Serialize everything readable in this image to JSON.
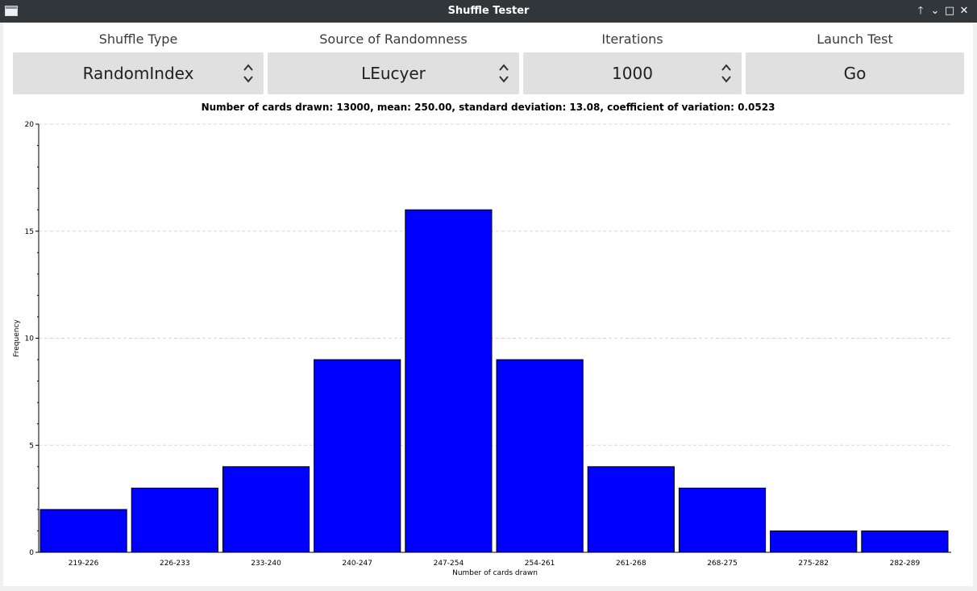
{
  "window": {
    "title": "Shuffle Tester",
    "buttons": {
      "keep_above": "🡑",
      "minimize": "⌄",
      "maximize": "□",
      "close": "✕"
    }
  },
  "controls": {
    "shuffle_type": {
      "label": "Shuffle Type",
      "value": "RandomIndex"
    },
    "source": {
      "label": "Source of Randomness",
      "value": "LEucyer"
    },
    "iterations": {
      "label": "Iterations",
      "value": "1000"
    },
    "launch": {
      "label": "Launch Test",
      "button": "Go"
    }
  },
  "stats_text": "Number of cards drawn: 13000, mean: 250.00, standard deviation: 13.08, coefficient of variation: 0.0523",
  "colors": {
    "bar": "#0000ff",
    "titlebar": "#31363b",
    "control_bg": "#e0e0e0"
  },
  "chart_data": {
    "type": "bar",
    "categories": [
      "219-226",
      "226-233",
      "233-240",
      "240-247",
      "247-254",
      "254-261",
      "261-268",
      "268-275",
      "275-282",
      "282-289"
    ],
    "values": [
      2,
      3,
      4,
      9,
      16,
      9,
      4,
      3,
      1,
      1
    ],
    "xlabel": "Number of cards drawn",
    "ylabel": "Frequency",
    "ylim": [
      0,
      20
    ],
    "yticks": [
      0,
      5,
      10,
      15,
      20
    ],
    "grid": "horizontal dashed",
    "legend": "none"
  }
}
